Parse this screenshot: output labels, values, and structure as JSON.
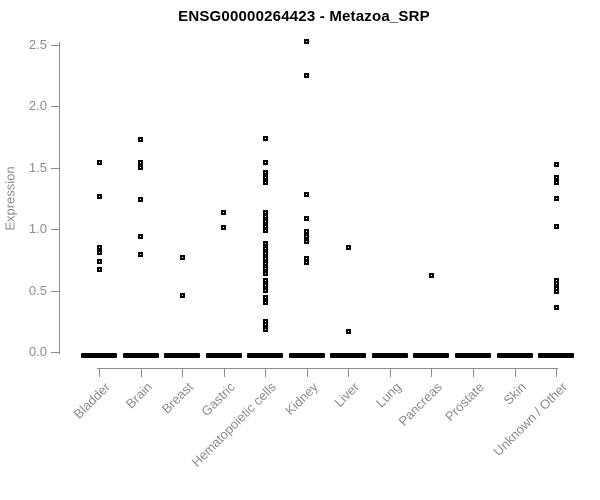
{
  "title": "ENSG00000264423 - Metazoa_SRP",
  "colors": {
    "title": "#000000",
    "axis": "#8c8c8c",
    "marker": "#000000",
    "background": "#ffffff"
  },
  "chart_data": {
    "type": "scatter",
    "subtype": "strip-plot",
    "title": "ENSG00000264423 - Metazoa_SRP",
    "xlabel": "",
    "ylabel": "Expression",
    "ylim": [
      0.0,
      2.5
    ],
    "yticks": [
      0.0,
      0.5,
      1.0,
      1.5,
      2.0,
      2.5
    ],
    "ytick_labels": [
      "0.0",
      "0.5",
      "1.0",
      "1.5",
      "2.0",
      "2.5"
    ],
    "grid": "off",
    "legend": "none",
    "marker": "small open black square",
    "zero_bar_note": "every category shows a dense solid black bar of overlapping points at expression 0.0",
    "categories": [
      {
        "label": "Bladder",
        "zero_bar": true,
        "values": [
          1.54,
          1.27,
          0.85,
          0.81,
          0.74,
          0.67
        ]
      },
      {
        "label": "Brain",
        "zero_bar": true,
        "values": [
          1.73,
          1.54,
          1.5,
          1.24,
          0.94,
          0.79
        ]
      },
      {
        "label": "Breast",
        "zero_bar": true,
        "values": [
          0.77,
          0.46
        ]
      },
      {
        "label": "Gastric",
        "zero_bar": true,
        "values": [
          1.14,
          1.01
        ]
      },
      {
        "label": "Hematopoietic cells",
        "zero_bar": true,
        "values": [
          1.74,
          1.54,
          1.46,
          1.42,
          1.38,
          1.14,
          1.1,
          1.06,
          1.02,
          0.99,
          0.88,
          0.84,
          0.8,
          0.76,
          0.72,
          0.68,
          0.64,
          0.58,
          0.54,
          0.5,
          0.44,
          0.4,
          0.25,
          0.22,
          0.18
        ]
      },
      {
        "label": "Kidney",
        "zero_bar": true,
        "values": [
          2.53,
          2.25,
          1.28,
          1.09,
          0.98,
          0.94,
          0.9,
          0.76,
          0.73
        ]
      },
      {
        "label": "Liver",
        "zero_bar": true,
        "values": [
          0.85,
          0.17
        ]
      },
      {
        "label": "Lung",
        "zero_bar": true,
        "values": []
      },
      {
        "label": "Pancreas",
        "zero_bar": true,
        "values": [
          0.62
        ]
      },
      {
        "label": "Prostate",
        "zero_bar": true,
        "values": []
      },
      {
        "label": "Skin",
        "zero_bar": true,
        "values": []
      },
      {
        "label": "Unknown / Other",
        "zero_bar": true,
        "values": [
          1.53,
          1.42,
          1.4,
          1.38,
          1.25,
          1.02,
          0.58,
          0.56,
          0.52,
          0.49,
          0.36
        ]
      }
    ]
  }
}
